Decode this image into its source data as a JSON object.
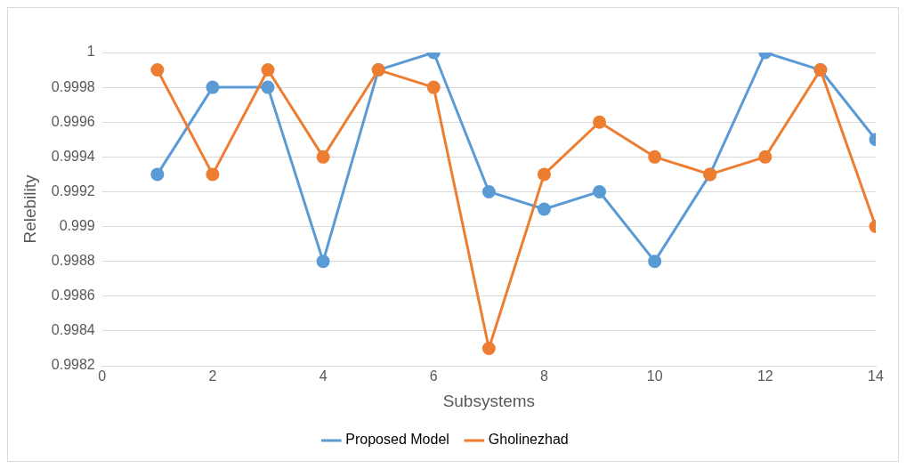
{
  "chart_data": {
    "type": "line",
    "xlabel": "Subsystems",
    "ylabel": "Relebility",
    "x": [
      1,
      2,
      3,
      4,
      5,
      6,
      7,
      8,
      9,
      10,
      11,
      12,
      13,
      14
    ],
    "series": [
      {
        "name": "Proposed Model",
        "color": "#5b9bd5",
        "values": [
          0.9993,
          0.9998,
          0.9998,
          0.9988,
          0.9999,
          1,
          0.9992,
          0.9991,
          0.9992,
          0.9988,
          0.9993,
          1,
          0.9999,
          0.9995
        ]
      },
      {
        "name": "Gholinezhad",
        "color": "#ed7d31",
        "values": [
          0.9999,
          0.9993,
          0.9999,
          0.9994,
          0.9999,
          0.9998,
          0.9983,
          0.9993,
          0.9996,
          0.9994,
          0.9993,
          0.9994,
          0.9999,
          0.999
        ]
      }
    ],
    "xlim": [
      0,
      14
    ],
    "xticks": [
      0,
      2,
      4,
      6,
      8,
      10,
      12,
      14
    ],
    "ylim": [
      0.9982,
      1
    ],
    "yticks": [
      0.9982,
      0.9984,
      0.9986,
      0.9988,
      0.999,
      0.9992,
      0.9994,
      0.9996,
      0.9998,
      1
    ],
    "grid": "y",
    "legend": "bottom",
    "marker": "circle",
    "line_style": "solid"
  }
}
